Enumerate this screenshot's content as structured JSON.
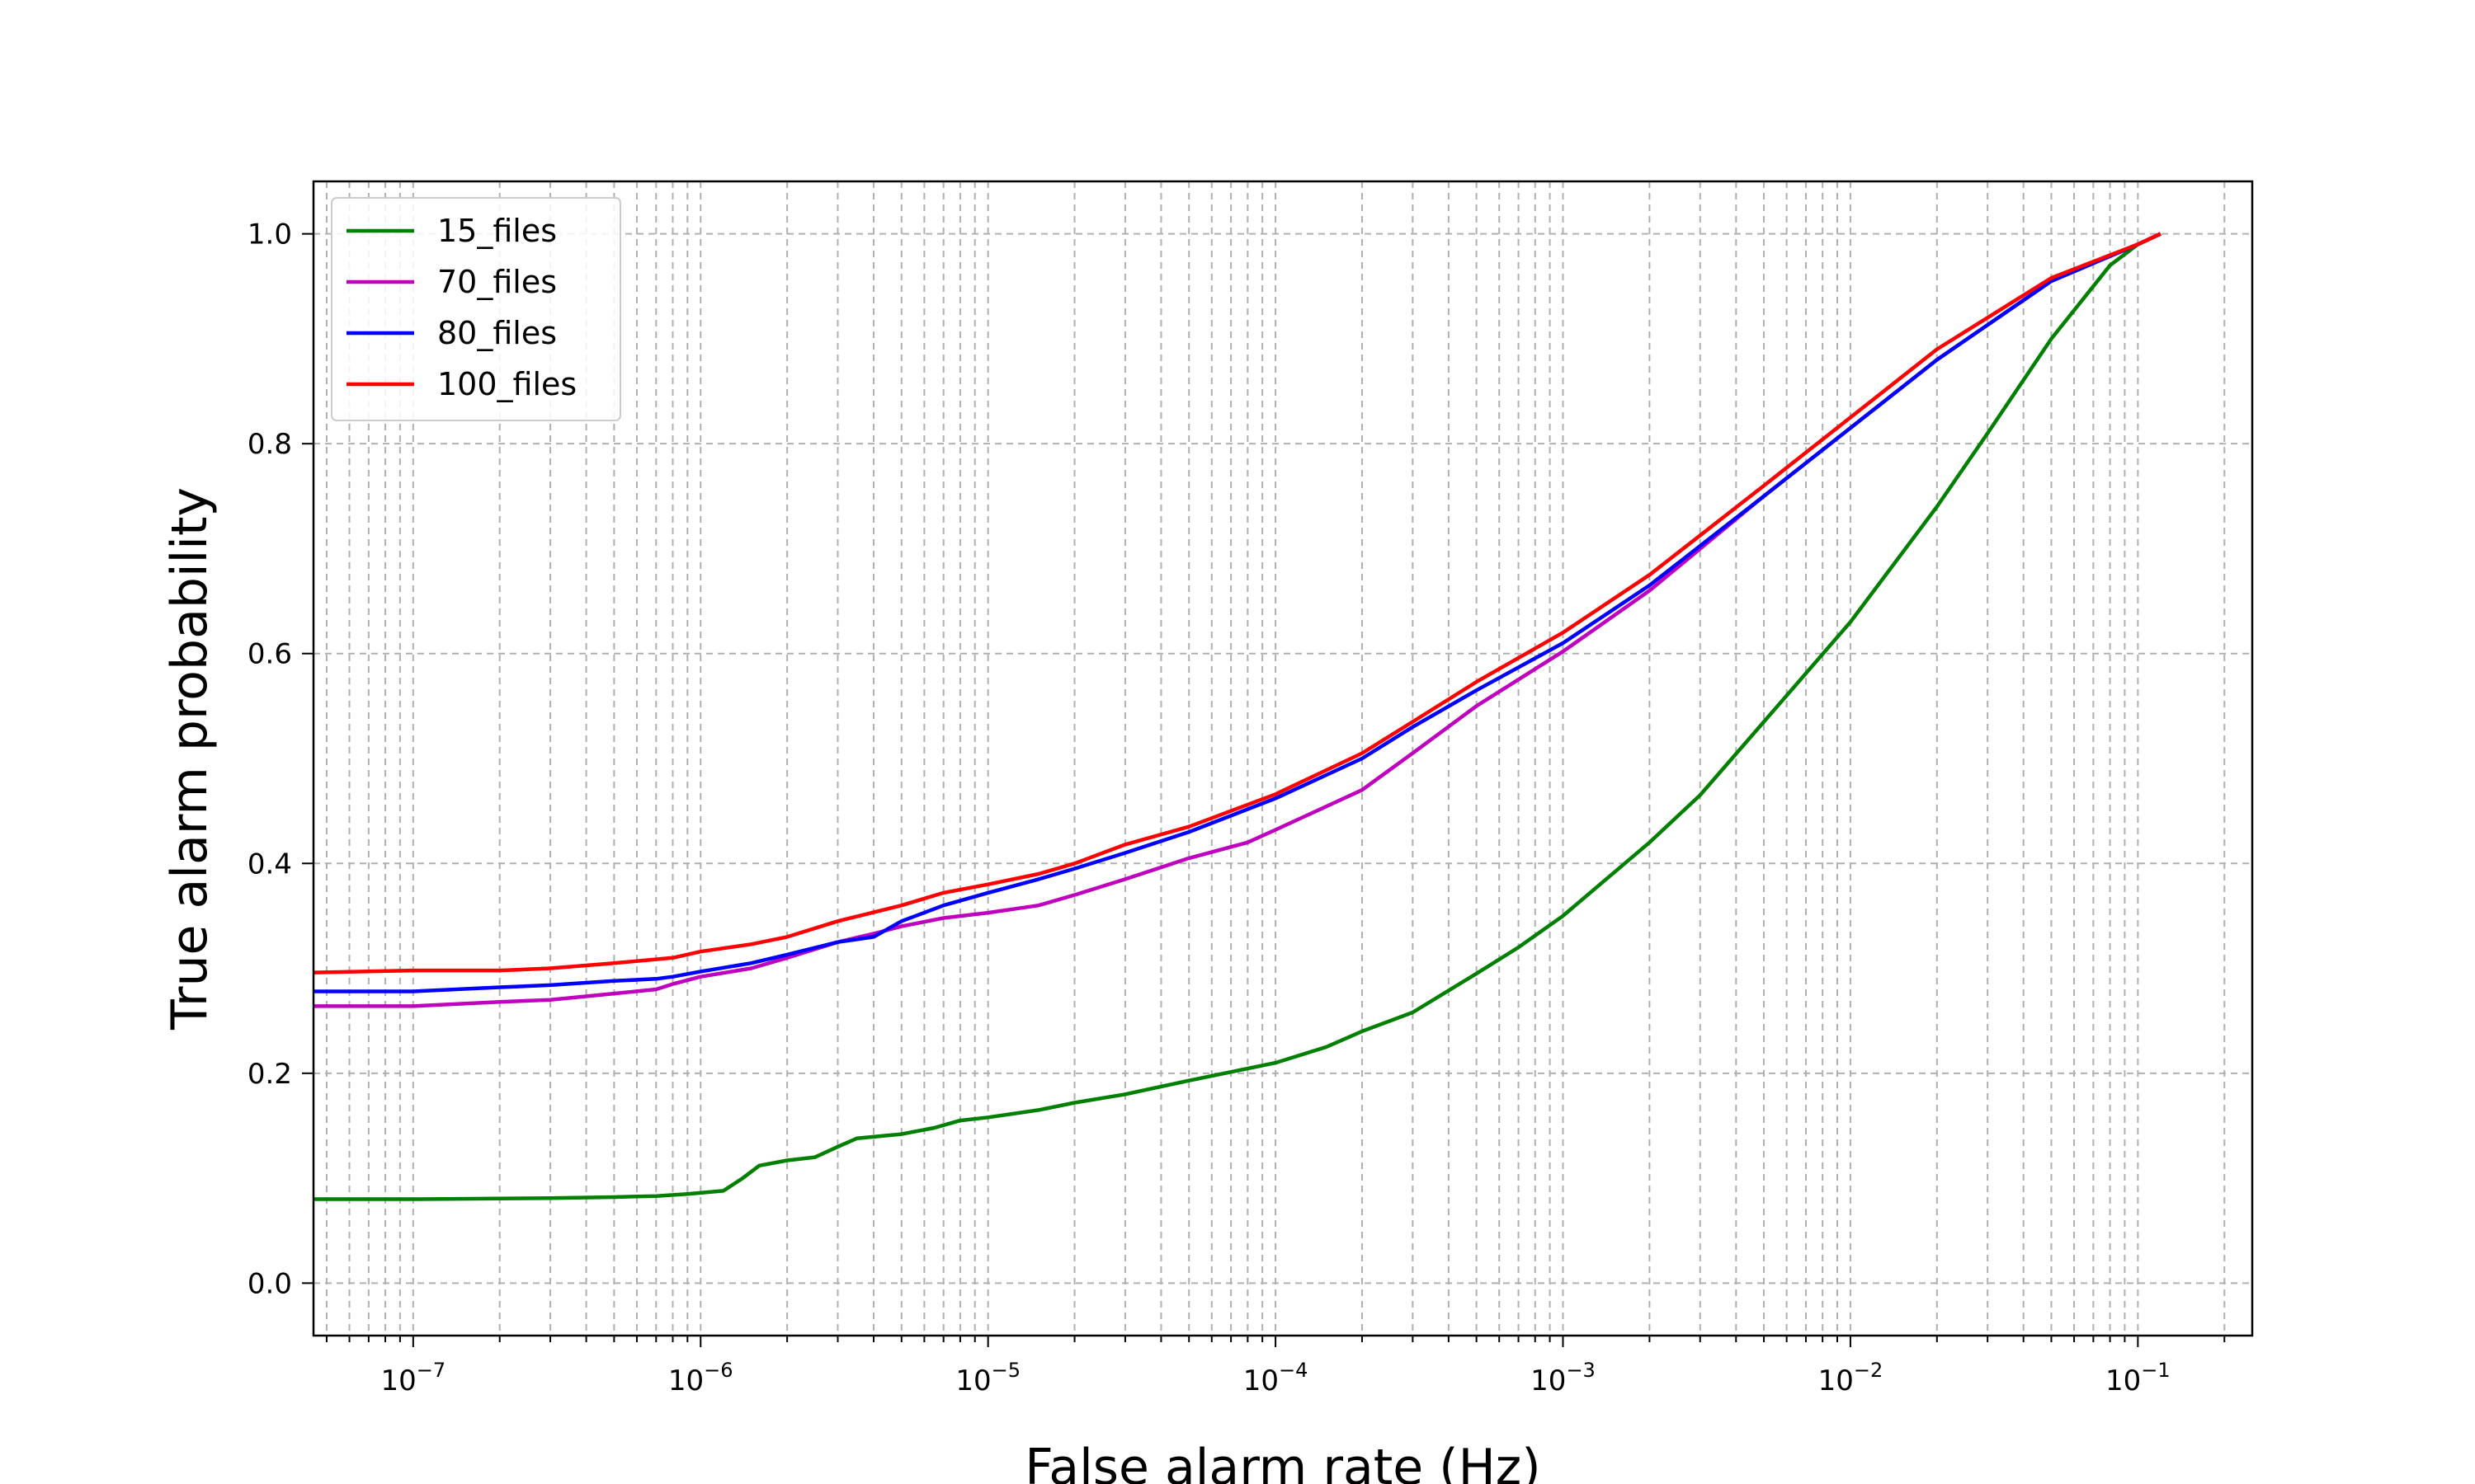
{
  "chart_data": {
    "type": "line",
    "title": "",
    "xlabel": "False alarm rate (Hz)",
    "ylabel": "True alarm probability",
    "xscale": "log",
    "xlim": [
      4.5e-08,
      0.25
    ],
    "ylim": [
      -0.05,
      1.05
    ],
    "grid": true,
    "grid_style": "dashed",
    "legend_position": "upper left",
    "x_ticks": [
      {
        "value": 1e-07,
        "base": "10",
        "exp": "−7"
      },
      {
        "value": 1e-06,
        "base": "10",
        "exp": "−6"
      },
      {
        "value": 1e-05,
        "base": "10",
        "exp": "−5"
      },
      {
        "value": 0.0001,
        "base": "10",
        "exp": "−4"
      },
      {
        "value": 0.001,
        "base": "10",
        "exp": "−3"
      },
      {
        "value": 0.01,
        "base": "10",
        "exp": "−2"
      },
      {
        "value": 0.1,
        "base": "10",
        "exp": "−1"
      }
    ],
    "y_ticks": [
      {
        "value": 0.0,
        "label": "0.0"
      },
      {
        "value": 0.2,
        "label": "0.2"
      },
      {
        "value": 0.4,
        "label": "0.4"
      },
      {
        "value": 0.6,
        "label": "0.6"
      },
      {
        "value": 0.8,
        "label": "0.8"
      },
      {
        "value": 1.0,
        "label": "1.0"
      }
    ],
    "series": [
      {
        "name": "15_files",
        "color": "#008000",
        "points": [
          [
            4.5e-08,
            0.08
          ],
          [
            1e-07,
            0.08
          ],
          [
            3e-07,
            0.081
          ],
          [
            5e-07,
            0.082
          ],
          [
            7e-07,
            0.083
          ],
          [
            9e-07,
            0.085
          ],
          [
            1.2e-06,
            0.088
          ],
          [
            1.4e-06,
            0.1
          ],
          [
            1.6e-06,
            0.112
          ],
          [
            2e-06,
            0.117
          ],
          [
            2.5e-06,
            0.12
          ],
          [
            3e-06,
            0.13
          ],
          [
            3.5e-06,
            0.138
          ],
          [
            5e-06,
            0.142
          ],
          [
            6.5e-06,
            0.148
          ],
          [
            8e-06,
            0.155
          ],
          [
            1e-05,
            0.158
          ],
          [
            1.5e-05,
            0.165
          ],
          [
            2e-05,
            0.172
          ],
          [
            3e-05,
            0.18
          ],
          [
            5e-05,
            0.193
          ],
          [
            0.0001,
            0.21
          ],
          [
            0.00015,
            0.225
          ],
          [
            0.0002,
            0.24
          ],
          [
            0.0003,
            0.258
          ],
          [
            0.0005,
            0.295
          ],
          [
            0.0007,
            0.32
          ],
          [
            0.001,
            0.35
          ],
          [
            0.002,
            0.42
          ],
          [
            0.003,
            0.465
          ],
          [
            0.005,
            0.535
          ],
          [
            0.01,
            0.63
          ],
          [
            0.02,
            0.74
          ],
          [
            0.03,
            0.81
          ],
          [
            0.05,
            0.9
          ],
          [
            0.08,
            0.97
          ],
          [
            0.1,
            0.99
          ],
          [
            0.12,
            1.0
          ]
        ]
      },
      {
        "name": "70_files",
        "color": "#bf00bf",
        "points": [
          [
            4.5e-08,
            0.264
          ],
          [
            1e-07,
            0.264
          ],
          [
            2e-07,
            0.268
          ],
          [
            3e-07,
            0.27
          ],
          [
            5e-07,
            0.276
          ],
          [
            7e-07,
            0.28
          ],
          [
            8e-07,
            0.285
          ],
          [
            1e-06,
            0.292
          ],
          [
            1.5e-06,
            0.3
          ],
          [
            2e-06,
            0.31
          ],
          [
            3e-06,
            0.325
          ],
          [
            4e-06,
            0.333
          ],
          [
            5e-06,
            0.34
          ],
          [
            7e-06,
            0.348
          ],
          [
            1e-05,
            0.353
          ],
          [
            1.5e-05,
            0.36
          ],
          [
            2e-05,
            0.37
          ],
          [
            3e-05,
            0.385
          ],
          [
            5e-05,
            0.405
          ],
          [
            8e-05,
            0.42
          ],
          [
            0.0001,
            0.432
          ],
          [
            0.0002,
            0.47
          ],
          [
            0.0003,
            0.505
          ],
          [
            0.0005,
            0.55
          ],
          [
            0.001,
            0.602
          ],
          [
            0.002,
            0.66
          ],
          [
            0.005,
            0.75
          ],
          [
            0.01,
            0.815
          ],
          [
            0.02,
            0.88
          ],
          [
            0.05,
            0.955
          ],
          [
            0.1,
            0.99
          ],
          [
            0.12,
            1.0
          ]
        ]
      },
      {
        "name": "80_files",
        "color": "#0000ff",
        "points": [
          [
            4.5e-08,
            0.278
          ],
          [
            1e-07,
            0.278
          ],
          [
            2e-07,
            0.282
          ],
          [
            3e-07,
            0.284
          ],
          [
            5e-07,
            0.288
          ],
          [
            7e-07,
            0.29
          ],
          [
            8e-07,
            0.292
          ],
          [
            1e-06,
            0.297
          ],
          [
            1.5e-06,
            0.305
          ],
          [
            2e-06,
            0.313
          ],
          [
            3e-06,
            0.325
          ],
          [
            4e-06,
            0.33
          ],
          [
            5e-06,
            0.345
          ],
          [
            7e-06,
            0.36
          ],
          [
            1e-05,
            0.372
          ],
          [
            1.5e-05,
            0.385
          ],
          [
            2e-05,
            0.395
          ],
          [
            3e-05,
            0.41
          ],
          [
            5e-05,
            0.43
          ],
          [
            0.0001,
            0.462
          ],
          [
            0.0002,
            0.5
          ],
          [
            0.0003,
            0.53
          ],
          [
            0.0005,
            0.565
          ],
          [
            0.001,
            0.61
          ],
          [
            0.002,
            0.665
          ],
          [
            0.005,
            0.75
          ],
          [
            0.01,
            0.815
          ],
          [
            0.02,
            0.88
          ],
          [
            0.05,
            0.955
          ],
          [
            0.1,
            0.99
          ],
          [
            0.12,
            1.0
          ]
        ]
      },
      {
        "name": "100_files",
        "color": "#ff0000",
        "points": [
          [
            4.5e-08,
            0.296
          ],
          [
            1e-07,
            0.298
          ],
          [
            2e-07,
            0.298
          ],
          [
            3e-07,
            0.3
          ],
          [
            5e-07,
            0.305
          ],
          [
            8e-07,
            0.31
          ],
          [
            1e-06,
            0.316
          ],
          [
            1.5e-06,
            0.323
          ],
          [
            2e-06,
            0.33
          ],
          [
            3e-06,
            0.345
          ],
          [
            5e-06,
            0.36
          ],
          [
            7e-06,
            0.372
          ],
          [
            1e-05,
            0.38
          ],
          [
            1.5e-05,
            0.39
          ],
          [
            2e-05,
            0.4
          ],
          [
            3e-05,
            0.418
          ],
          [
            5e-05,
            0.435
          ],
          [
            0.0001,
            0.466
          ],
          [
            0.0002,
            0.505
          ],
          [
            0.0003,
            0.535
          ],
          [
            0.0005,
            0.573
          ],
          [
            0.001,
            0.62
          ],
          [
            0.002,
            0.675
          ],
          [
            0.005,
            0.76
          ],
          [
            0.01,
            0.825
          ],
          [
            0.02,
            0.89
          ],
          [
            0.05,
            0.958
          ],
          [
            0.1,
            0.99
          ],
          [
            0.12,
            1.0
          ]
        ]
      }
    ]
  }
}
